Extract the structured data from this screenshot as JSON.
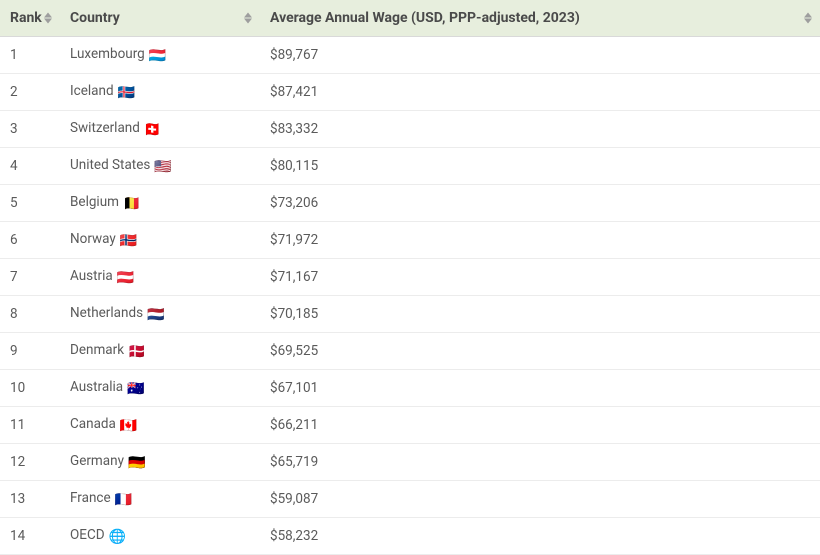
{
  "table": {
    "columns": [
      {
        "key": "rank",
        "label": "Rank",
        "sortable": true
      },
      {
        "key": "country",
        "label": "Country",
        "sortable": true
      },
      {
        "key": "wage",
        "label": "Average Annual Wage (USD, PPP-adjusted, 2023)",
        "sortable": true
      }
    ],
    "header_bg": "#e7eedd",
    "header_text_color": "#4a4a4a",
    "row_text_color": "#5a5a5a",
    "border_color": "#ececec",
    "sort_icon_color": "#9e9e9e",
    "font_size_header": 14,
    "font_size_body": 13.5,
    "rows": [
      {
        "rank": "1",
        "country": "Luxembourg",
        "flag": "🇱🇺",
        "wage": "$89,767"
      },
      {
        "rank": "2",
        "country": "Iceland",
        "flag": "🇮🇸",
        "wage": "$87,421"
      },
      {
        "rank": "3",
        "country": "Switzerland",
        "flag": "🇨🇭",
        "wage": "$83,332"
      },
      {
        "rank": "4",
        "country": "United States",
        "flag": "🇺🇸",
        "wage": "$80,115"
      },
      {
        "rank": "5",
        "country": "Belgium",
        "flag": "🇧🇪",
        "wage": "$73,206"
      },
      {
        "rank": "6",
        "country": "Norway",
        "flag": "🇳🇴",
        "wage": "$71,972"
      },
      {
        "rank": "7",
        "country": "Austria",
        "flag": "🇦🇹",
        "wage": "$71,167"
      },
      {
        "rank": "8",
        "country": "Netherlands",
        "flag": "🇳🇱",
        "wage": "$70,185"
      },
      {
        "rank": "9",
        "country": "Denmark",
        "flag": "🇩🇰",
        "wage": "$69,525"
      },
      {
        "rank": "10",
        "country": "Australia",
        "flag": "🇦🇺",
        "wage": "$67,101"
      },
      {
        "rank": "11",
        "country": "Canada",
        "flag": "🇨🇦",
        "wage": "$66,211"
      },
      {
        "rank": "12",
        "country": "Germany",
        "flag": "🇩🇪",
        "wage": "$65,719"
      },
      {
        "rank": "13",
        "country": "France",
        "flag": "🇫🇷",
        "wage": "$59,087"
      },
      {
        "rank": "14",
        "country": "OECD",
        "flag": "🌐",
        "wage": "$58,232"
      }
    ]
  }
}
